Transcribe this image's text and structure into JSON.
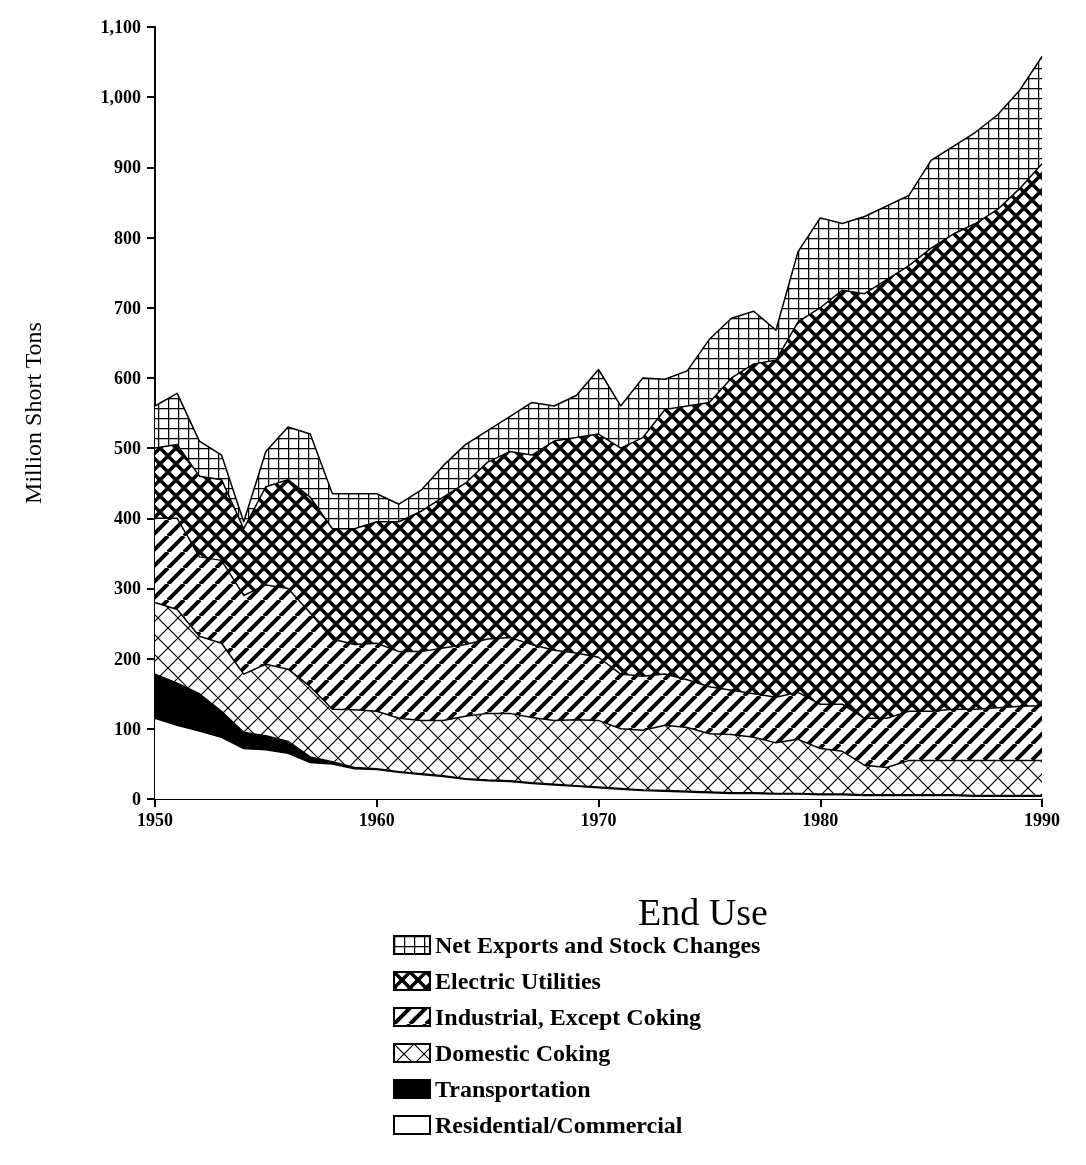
{
  "chart_data": {
    "type": "area",
    "stacked": true,
    "ylabel": "Million Short Tons",
    "legend_title": "End Use",
    "legend": "bottom",
    "grid": false,
    "marker": "none",
    "x": [
      1950,
      1951,
      1952,
      1953,
      1954,
      1955,
      1956,
      1957,
      1958,
      1959,
      1960,
      1961,
      1962,
      1963,
      1964,
      1965,
      1966,
      1967,
      1968,
      1969,
      1970,
      1971,
      1972,
      1973,
      1974,
      1975,
      1976,
      1977,
      1978,
      1979,
      1980,
      1981,
      1982,
      1983,
      1984,
      1985,
      1986,
      1987,
      1988,
      1989,
      1990
    ],
    "xlim": [
      1950,
      1990
    ],
    "xticks": [
      1950,
      1960,
      1970,
      1980,
      1990
    ],
    "ylim": [
      0,
      1100
    ],
    "yticks": [
      0,
      100,
      200,
      300,
      400,
      500,
      600,
      700,
      800,
      900,
      {
        "value": 1000,
        "label": "1,000"
      },
      {
        "value": 1100,
        "label": "1,100"
      }
    ],
    "series": [
      {
        "name": "Residential/Commercial",
        "color": "#ffffff",
        "values": [
          115,
          105,
          97,
          88,
          72,
          70,
          65,
          52,
          50,
          43,
          42,
          38,
          35,
          32,
          28,
          26,
          25,
          22,
          20,
          18,
          16,
          14,
          12,
          11,
          10,
          9,
          8,
          8,
          7,
          7,
          6,
          6,
          5,
          5,
          5,
          5,
          5,
          4,
          4,
          4,
          4
        ]
      },
      {
        "name": "Transportation",
        "color": "#000000",
        "values": [
          63,
          60,
          53,
          37,
          23,
          20,
          17,
          8,
          3,
          2,
          1,
          1,
          1,
          1,
          1,
          1,
          1,
          1,
          1,
          1,
          1,
          1,
          1,
          1,
          1,
          1,
          1,
          1,
          1,
          1,
          1,
          1,
          1,
          1,
          1,
          1,
          1,
          1,
          1,
          1,
          1
        ]
      },
      {
        "name": "Domestic Coking",
        "color": "#000000",
        "values": [
          102,
          105,
          82,
          97,
          83,
          102,
          103,
          100,
          75,
          82,
          82,
          76,
          76,
          79,
          89,
          95,
          96,
          93,
          91,
          94,
          95,
          85,
          85,
          93,
          91,
          83,
          83,
          79,
          72,
          77,
          65,
          61,
          42,
          39,
          49,
          49,
          49,
          50,
          50,
          50,
          50
        ]
      },
      {
        "name": "Industrial, Except Coking",
        "color": "#000000",
        "values": [
          120,
          130,
          113,
          118,
          112,
          113,
          115,
          105,
          100,
          93,
          97,
          95,
          98,
          103,
          102,
          106,
          108,
          104,
          100,
          95,
          90,
          78,
          77,
          73,
          68,
          67,
          63,
          62,
          65,
          67,
          63,
          67,
          67,
          70,
          70,
          70,
          73,
          73,
          75,
          77,
          78
        ]
      },
      {
        "name": "Electric Utilities",
        "color": "#000000",
        "values": [
          100,
          105,
          115,
          115,
          95,
          140,
          155,
          165,
          157,
          165,
          173,
          185,
          200,
          215,
          230,
          252,
          265,
          270,
          298,
          307,
          318,
          322,
          340,
          377,
          390,
          405,
          445,
          470,
          480,
          528,
          565,
          590,
          605,
          625,
          635,
          660,
          677,
          692,
          710,
          738,
          772
        ]
      },
      {
        "name": "Net Exports and Stock Changes",
        "color": "#000000",
        "values": [
          60,
          73,
          50,
          35,
          10,
          50,
          75,
          90,
          50,
          50,
          40,
          25,
          30,
          45,
          55,
          45,
          50,
          75,
          50,
          60,
          92,
          60,
          85,
          43,
          50,
          90,
          85,
          75,
          43,
          100,
          128,
          95,
          110,
          105,
          100,
          125,
          125,
          130,
          135,
          140,
          153
        ]
      }
    ]
  }
}
